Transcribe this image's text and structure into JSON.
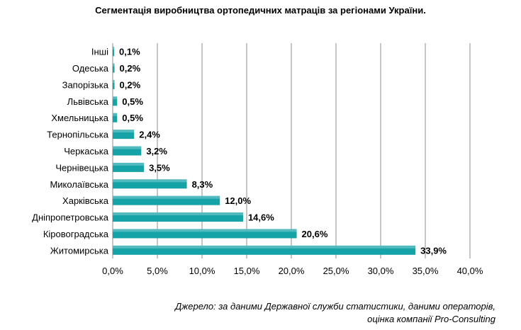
{
  "chart_data": {
    "type": "bar",
    "orientation": "horizontal",
    "title": "Сегментація виробництва ортопедичних матраців за регіонами України.",
    "categories": [
      "Інші",
      "Одеська",
      "Запорізька",
      "Львівська",
      "Хмельницька",
      "Тернопільська",
      "Черкаська",
      "Чернівецька",
      "Миколаївська",
      "Харківська",
      "Дніпропетровська",
      "Кіровоградська",
      "Житомирська"
    ],
    "values": [
      0.1,
      0.2,
      0.2,
      0.5,
      0.5,
      2.4,
      3.2,
      3.5,
      8.3,
      12.0,
      14.6,
      20.6,
      33.9
    ],
    "value_labels": [
      "0,1%",
      "0,2%",
      "0,2%",
      "0,5%",
      "0,5%",
      "2,4%",
      "3,2%",
      "3,5%",
      "8,3%",
      "12,0%",
      "14,6%",
      "20,6%",
      "33,9%"
    ],
    "xlim": [
      0,
      40
    ],
    "x_ticks": [
      "0,0%",
      "5,0%",
      "10,0%",
      "15,0%",
      "20,0%",
      "25,0%",
      "30,0%",
      "35,0%",
      "40,0%"
    ],
    "grid": true,
    "bar_color": "#16A3A8",
    "legend": "none"
  },
  "source": {
    "line1": "Джерело: за даними Державної служби статистики, даними операторів,",
    "line2": "оцінка компанії Pro-Consulting"
  }
}
